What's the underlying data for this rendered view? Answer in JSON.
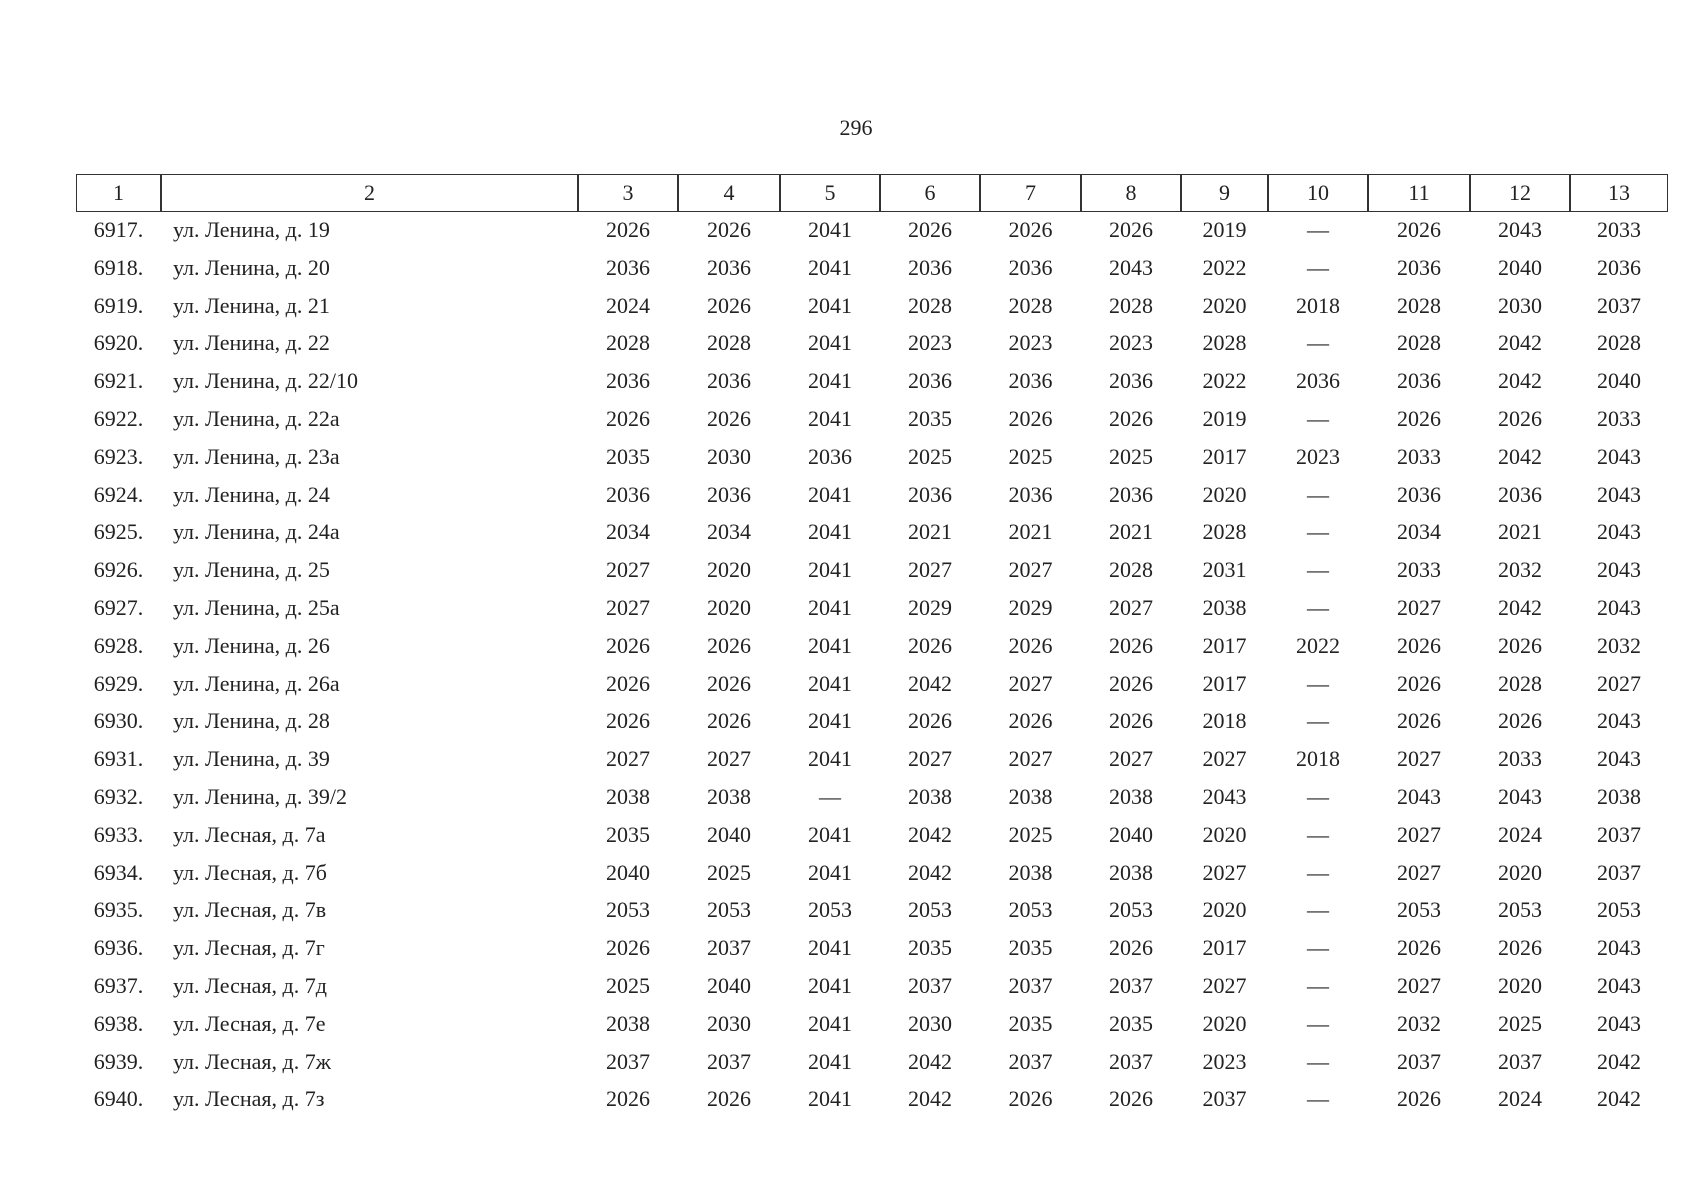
{
  "page_number": "296",
  "table": {
    "header": [
      "1",
      "2",
      "3",
      "4",
      "5",
      "6",
      "7",
      "8",
      "9",
      "10",
      "11",
      "12",
      "13"
    ],
    "rows": [
      [
        "6917.",
        "ул. Ленина, д. 19",
        "2026",
        "2026",
        "2041",
        "2026",
        "2026",
        "2026",
        "2019",
        "—",
        "2026",
        "2043",
        "2033"
      ],
      [
        "6918.",
        "ул. Ленина, д. 20",
        "2036",
        "2036",
        "2041",
        "2036",
        "2036",
        "2043",
        "2022",
        "—",
        "2036",
        "2040",
        "2036"
      ],
      [
        "6919.",
        "ул. Ленина, д. 21",
        "2024",
        "2026",
        "2041",
        "2028",
        "2028",
        "2028",
        "2020",
        "2018",
        "2028",
        "2030",
        "2037"
      ],
      [
        "6920.",
        "ул. Ленина, д. 22",
        "2028",
        "2028",
        "2041",
        "2023",
        "2023",
        "2023",
        "2028",
        "—",
        "2028",
        "2042",
        "2028"
      ],
      [
        "6921.",
        "ул. Ленина, д. 22/10",
        "2036",
        "2036",
        "2041",
        "2036",
        "2036",
        "2036",
        "2022",
        "2036",
        "2036",
        "2042",
        "2040"
      ],
      [
        "6922.",
        "ул. Ленина, д. 22а",
        "2026",
        "2026",
        "2041",
        "2035",
        "2026",
        "2026",
        "2019",
        "—",
        "2026",
        "2026",
        "2033"
      ],
      [
        "6923.",
        "ул. Ленина, д. 23а",
        "2035",
        "2030",
        "2036",
        "2025",
        "2025",
        "2025",
        "2017",
        "2023",
        "2033",
        "2042",
        "2043"
      ],
      [
        "6924.",
        "ул. Ленина, д. 24",
        "2036",
        "2036",
        "2041",
        "2036",
        "2036",
        "2036",
        "2020",
        "—",
        "2036",
        "2036",
        "2043"
      ],
      [
        "6925.",
        "ул. Ленина, д. 24а",
        "2034",
        "2034",
        "2041",
        "2021",
        "2021",
        "2021",
        "2028",
        "—",
        "2034",
        "2021",
        "2043"
      ],
      [
        "6926.",
        "ул. Ленина, д. 25",
        "2027",
        "2020",
        "2041",
        "2027",
        "2027",
        "2028",
        "2031",
        "—",
        "2033",
        "2032",
        "2043"
      ],
      [
        "6927.",
        "ул. Ленина, д. 25а",
        "2027",
        "2020",
        "2041",
        "2029",
        "2029",
        "2027",
        "2038",
        "—",
        "2027",
        "2042",
        "2043"
      ],
      [
        "6928.",
        "ул. Ленина, д. 26",
        "2026",
        "2026",
        "2041",
        "2026",
        "2026",
        "2026",
        "2017",
        "2022",
        "2026",
        "2026",
        "2032"
      ],
      [
        "6929.",
        "ул. Ленина, д. 26а",
        "2026",
        "2026",
        "2041",
        "2042",
        "2027",
        "2026",
        "2017",
        "—",
        "2026",
        "2028",
        "2027"
      ],
      [
        "6930.",
        "ул. Ленина, д. 28",
        "2026",
        "2026",
        "2041",
        "2026",
        "2026",
        "2026",
        "2018",
        "—",
        "2026",
        "2026",
        "2043"
      ],
      [
        "6931.",
        "ул. Ленина, д. 39",
        "2027",
        "2027",
        "2041",
        "2027",
        "2027",
        "2027",
        "2027",
        "2018",
        "2027",
        "2033",
        "2043"
      ],
      [
        "6932.",
        "ул. Ленина, д. 39/2",
        "2038",
        "2038",
        "—",
        "2038",
        "2038",
        "2038",
        "2043",
        "—",
        "2043",
        "2043",
        "2038"
      ],
      [
        "6933.",
        "ул. Лесная, д. 7а",
        "2035",
        "2040",
        "2041",
        "2042",
        "2025",
        "2040",
        "2020",
        "—",
        "2027",
        "2024",
        "2037"
      ],
      [
        "6934.",
        "ул. Лесная, д. 7б",
        "2040",
        "2025",
        "2041",
        "2042",
        "2038",
        "2038",
        "2027",
        "—",
        "2027",
        "2020",
        "2037"
      ],
      [
        "6935.",
        "ул. Лесная, д. 7в",
        "2053",
        "2053",
        "2053",
        "2053",
        "2053",
        "2053",
        "2020",
        "—",
        "2053",
        "2053",
        "2053"
      ],
      [
        "6936.",
        "ул. Лесная, д. 7г",
        "2026",
        "2037",
        "2041",
        "2035",
        "2035",
        "2026",
        "2017",
        "—",
        "2026",
        "2026",
        "2043"
      ],
      [
        "6937.",
        "ул. Лесная, д. 7д",
        "2025",
        "2040",
        "2041",
        "2037",
        "2037",
        "2037",
        "2027",
        "—",
        "2027",
        "2020",
        "2043"
      ],
      [
        "6938.",
        "ул. Лесная, д. 7е",
        "2038",
        "2030",
        "2041",
        "2030",
        "2035",
        "2035",
        "2020",
        "—",
        "2032",
        "2025",
        "2043"
      ],
      [
        "6939.",
        "ул. Лесная, д. 7ж",
        "2037",
        "2037",
        "2041",
        "2042",
        "2037",
        "2037",
        "2023",
        "—",
        "2037",
        "2037",
        "2042"
      ],
      [
        "6940.",
        "ул. Лесная, д. 7з",
        "2026",
        "2026",
        "2041",
        "2042",
        "2026",
        "2026",
        "2037",
        "—",
        "2026",
        "2024",
        "2042"
      ]
    ]
  }
}
